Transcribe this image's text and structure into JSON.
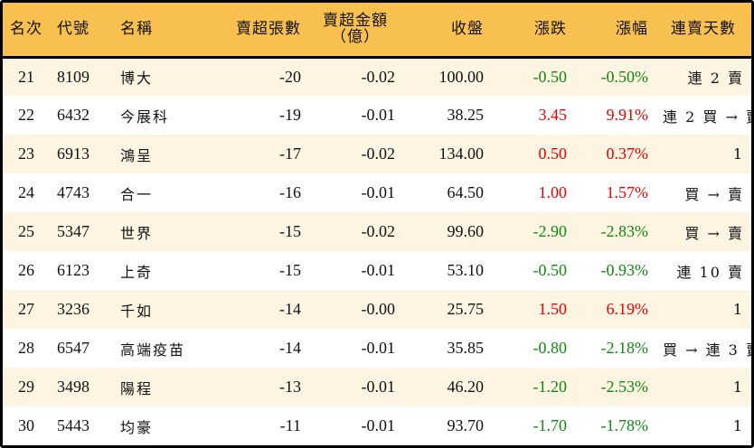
{
  "table": {
    "headers": {
      "rank": "名次",
      "code": "代號",
      "name": "名稱",
      "net_sell_volume": "賣超張數",
      "net_sell_amount_line1": "賣超金額",
      "net_sell_amount_line2": "（億）",
      "close": "收盤",
      "change": "漲跌",
      "change_pct": "漲幅",
      "streak": "連賣天數"
    },
    "colors": {
      "header_bg": "#f8c04f",
      "row_alt_bg": "#fdf5e2",
      "up": "#ee0000",
      "down": "#118811"
    },
    "rows": [
      {
        "rank": "21",
        "code": "8109",
        "name": "博大",
        "volume": "-20",
        "amount": "-0.02",
        "close": "100.00",
        "change": "-0.50",
        "pct": "-0.50%",
        "dir": "down",
        "streak": "連 2 賣"
      },
      {
        "rank": "22",
        "code": "6432",
        "name": "今展科",
        "volume": "-19",
        "amount": "-0.01",
        "close": "38.25",
        "change": "3.45",
        "pct": "9.91%",
        "dir": "up",
        "streak": "連 2 買 → 賣"
      },
      {
        "rank": "23",
        "code": "6913",
        "name": "鴻呈",
        "volume": "-17",
        "amount": "-0.02",
        "close": "134.00",
        "change": "0.50",
        "pct": "0.37%",
        "dir": "up",
        "streak": "1"
      },
      {
        "rank": "24",
        "code": "4743",
        "name": "合一",
        "volume": "-16",
        "amount": "-0.01",
        "close": "64.50",
        "change": "1.00",
        "pct": "1.57%",
        "dir": "up",
        "streak": "買 → 賣"
      },
      {
        "rank": "25",
        "code": "5347",
        "name": "世界",
        "volume": "-15",
        "amount": "-0.02",
        "close": "99.60",
        "change": "-2.90",
        "pct": "-2.83%",
        "dir": "down",
        "streak": "買 → 賣"
      },
      {
        "rank": "26",
        "code": "6123",
        "name": "上奇",
        "volume": "-15",
        "amount": "-0.01",
        "close": "53.10",
        "change": "-0.50",
        "pct": "-0.93%",
        "dir": "down",
        "streak": "連 10 賣"
      },
      {
        "rank": "27",
        "code": "3236",
        "name": "千如",
        "volume": "-14",
        "amount": "-0.00",
        "close": "25.75",
        "change": "1.50",
        "pct": "6.19%",
        "dir": "up",
        "streak": "1"
      },
      {
        "rank": "28",
        "code": "6547",
        "name": "高端疫苗",
        "volume": "-14",
        "amount": "-0.01",
        "close": "35.85",
        "change": "-0.80",
        "pct": "-2.18%",
        "dir": "down",
        "streak": "買 → 連 3 賣"
      },
      {
        "rank": "29",
        "code": "3498",
        "name": "陽程",
        "volume": "-13",
        "amount": "-0.01",
        "close": "46.20",
        "change": "-1.20",
        "pct": "-2.53%",
        "dir": "down",
        "streak": "1"
      },
      {
        "rank": "30",
        "code": "5443",
        "name": "均豪",
        "volume": "-11",
        "amount": "-0.01",
        "close": "93.70",
        "change": "-1.70",
        "pct": "-1.78%",
        "dir": "down",
        "streak": "1"
      }
    ]
  }
}
